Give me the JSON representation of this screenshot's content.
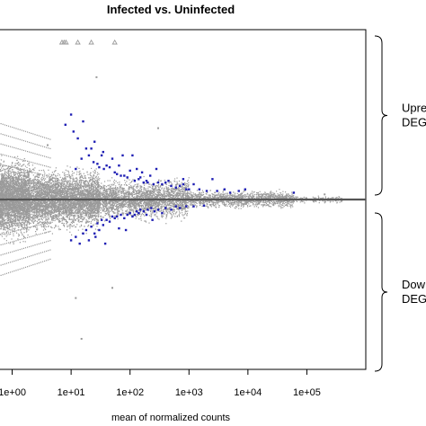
{
  "chart_data": {
    "type": "scatter",
    "title": "Infected vs. Uninfected",
    "xlabel": "mean of normalized counts",
    "ylabel": "",
    "x_scale": "log10",
    "x_ticks": [
      {
        "value": 1,
        "label": "1e+00"
      },
      {
        "value": 10,
        "label": "1e+01"
      },
      {
        "value": 100,
        "label": "1e+02"
      },
      {
        "value": 1000,
        "label": "1e+03"
      },
      {
        "value": 10000,
        "label": "1e+04"
      },
      {
        "value": 100000,
        "label": "1e+05"
      }
    ],
    "xlim": [
      0.6,
      1000000
    ],
    "ylim": [
      -5,
      5
    ],
    "baseline_y": 0,
    "series": [
      {
        "color": "#9a9a9a",
        "role": "non-significant genes",
        "clusters": [
          {
            "x_range": [
              0.6,
              2.0
            ],
            "y_range": [
              -1.5,
              1.5
            ],
            "count": 3200
          },
          {
            "x_range": [
              2.0,
              30
            ],
            "y_range": [
              -1.2,
              1.2
            ],
            "count": 4200
          },
          {
            "x_range": [
              30,
              1000
            ],
            "y_range": [
              -0.8,
              0.8
            ],
            "count": 2600
          },
          {
            "x_range": [
              1000,
              60000
            ],
            "y_range": [
              -0.35,
              0.35
            ],
            "count": 1400
          },
          {
            "x_range": [
              60000,
              400000
            ],
            "y_range": [
              -0.15,
              0.15
            ],
            "count": 160
          }
        ],
        "points": [
          {
            "x": 27,
            "y": 3.6
          },
          {
            "x": 4,
            "y": 1.6
          },
          {
            "x": 12,
            "y": -2.9
          },
          {
            "x": 50,
            "y": -2.6
          },
          {
            "x": 15,
            "y": -4.1
          },
          {
            "x": 300,
            "y": 2.1
          },
          {
            "x": 200000,
            "y": 0.15
          }
        ]
      },
      {
        "color": "#1f1fb4",
        "role": "upregulated DEGs",
        "points": [
          {
            "x": 8,
            "y": 2.2
          },
          {
            "x": 10,
            "y": 2.5
          },
          {
            "x": 11,
            "y": 2.0
          },
          {
            "x": 13,
            "y": 1.8
          },
          {
            "x": 15,
            "y": 1.2
          },
          {
            "x": 18,
            "y": 1.5
          },
          {
            "x": 20,
            "y": 1.3
          },
          {
            "x": 22,
            "y": 1.5
          },
          {
            "x": 25,
            "y": 1.7
          },
          {
            "x": 28,
            "y": 1.05
          },
          {
            "x": 30,
            "y": 0.95
          },
          {
            "x": 33,
            "y": 1.3
          },
          {
            "x": 35,
            "y": 1.4
          },
          {
            "x": 40,
            "y": 1.0
          },
          {
            "x": 45,
            "y": 0.95
          },
          {
            "x": 50,
            "y": 1.2
          },
          {
            "x": 55,
            "y": 0.8
          },
          {
            "x": 60,
            "y": 0.75
          },
          {
            "x": 65,
            "y": 1.0
          },
          {
            "x": 70,
            "y": 0.7
          },
          {
            "x": 80,
            "y": 0.7
          },
          {
            "x": 90,
            "y": 0.65
          },
          {
            "x": 100,
            "y": 0.85
          },
          {
            "x": 110,
            "y": 1.3
          },
          {
            "x": 120,
            "y": 0.55
          },
          {
            "x": 130,
            "y": 0.9
          },
          {
            "x": 140,
            "y": 0.6
          },
          {
            "x": 150,
            "y": 0.65
          },
          {
            "x": 170,
            "y": 0.5
          },
          {
            "x": 190,
            "y": 0.55
          },
          {
            "x": 200,
            "y": 0.5
          },
          {
            "x": 220,
            "y": 0.7
          },
          {
            "x": 250,
            "y": 0.45
          },
          {
            "x": 280,
            "y": 0.9
          },
          {
            "x": 300,
            "y": 0.5
          },
          {
            "x": 350,
            "y": 0.45
          },
          {
            "x": 400,
            "y": 0.5
          },
          {
            "x": 450,
            "y": 0.55
          },
          {
            "x": 500,
            "y": 0.4
          },
          {
            "x": 600,
            "y": 0.35
          },
          {
            "x": 700,
            "y": 0.4
          },
          {
            "x": 800,
            "y": 0.45
          },
          {
            "x": 900,
            "y": 0.3
          },
          {
            "x": 1000,
            "y": 0.3
          },
          {
            "x": 1200,
            "y": 0.45
          },
          {
            "x": 1500,
            "y": 0.3
          },
          {
            "x": 2000,
            "y": 0.25
          },
          {
            "x": 2500,
            "y": 0.6
          },
          {
            "x": 3000,
            "y": 0.25
          },
          {
            "x": 4000,
            "y": 0.3
          },
          {
            "x": 5000,
            "y": 0.2
          },
          {
            "x": 7000,
            "y": 0.25
          },
          {
            "x": 9000,
            "y": 0.3
          },
          {
            "x": 12,
            "y": 0.9
          },
          {
            "x": 16,
            "y": 2.3
          },
          {
            "x": 24,
            "y": 1.1
          },
          {
            "x": 36,
            "y": 0.9
          },
          {
            "x": 75,
            "y": 1.3
          },
          {
            "x": 160,
            "y": 0.8
          },
          {
            "x": 800,
            "y": 0.6
          },
          {
            "x": 60000,
            "y": 0.2
          }
        ]
      },
      {
        "color": "#1f1fb4",
        "role": "downregulated DEGs",
        "points": [
          {
            "x": 10,
            "y": -1.2
          },
          {
            "x": 12,
            "y": -1.1
          },
          {
            "x": 14,
            "y": -1.3
          },
          {
            "x": 16,
            "y": -1.0
          },
          {
            "x": 18,
            "y": -0.9
          },
          {
            "x": 20,
            "y": -1.2
          },
          {
            "x": 22,
            "y": -0.8
          },
          {
            "x": 25,
            "y": -1.0
          },
          {
            "x": 28,
            "y": -0.7
          },
          {
            "x": 30,
            "y": -0.9
          },
          {
            "x": 33,
            "y": -0.6
          },
          {
            "x": 35,
            "y": -0.75
          },
          {
            "x": 40,
            "y": -0.6
          },
          {
            "x": 45,
            "y": -0.65
          },
          {
            "x": 50,
            "y": -0.5
          },
          {
            "x": 55,
            "y": -0.55
          },
          {
            "x": 60,
            "y": -0.5
          },
          {
            "x": 70,
            "y": -0.45
          },
          {
            "x": 80,
            "y": -0.55
          },
          {
            "x": 90,
            "y": -0.45
          },
          {
            "x": 100,
            "y": -0.4
          },
          {
            "x": 110,
            "y": -0.5
          },
          {
            "x": 120,
            "y": -0.45
          },
          {
            "x": 130,
            "y": -0.35
          },
          {
            "x": 140,
            "y": -0.4
          },
          {
            "x": 150,
            "y": -0.3
          },
          {
            "x": 170,
            "y": -0.35
          },
          {
            "x": 190,
            "y": -0.45
          },
          {
            "x": 200,
            "y": -0.3
          },
          {
            "x": 230,
            "y": -0.25
          },
          {
            "x": 260,
            "y": -0.35
          },
          {
            "x": 300,
            "y": -0.3
          },
          {
            "x": 350,
            "y": -0.4
          },
          {
            "x": 400,
            "y": -0.25
          },
          {
            "x": 500,
            "y": -0.3
          },
          {
            "x": 600,
            "y": -0.2
          },
          {
            "x": 700,
            "y": -0.25
          },
          {
            "x": 900,
            "y": -0.2
          },
          {
            "x": 1200,
            "y": -0.2
          },
          {
            "x": 1800,
            "y": -0.18
          },
          {
            "x": 26,
            "y": -1.1
          },
          {
            "x": 38,
            "y": -1.3
          },
          {
            "x": 65,
            "y": -0.85
          },
          {
            "x": 85,
            "y": -0.9
          },
          {
            "x": 240,
            "y": -0.6
          }
        ]
      }
    ],
    "outliers_top": {
      "marker": "triangle",
      "color": "#9a9a9a",
      "x": [
        7.0,
        7.6,
        8.2,
        13,
        22,
        55
      ]
    },
    "annotations": [
      {
        "text_lines": [
          "Upre",
          "DEG"
        ],
        "group": "up"
      },
      {
        "text_lines": [
          "Dow",
          "DEG"
        ],
        "group": "down"
      }
    ]
  }
}
